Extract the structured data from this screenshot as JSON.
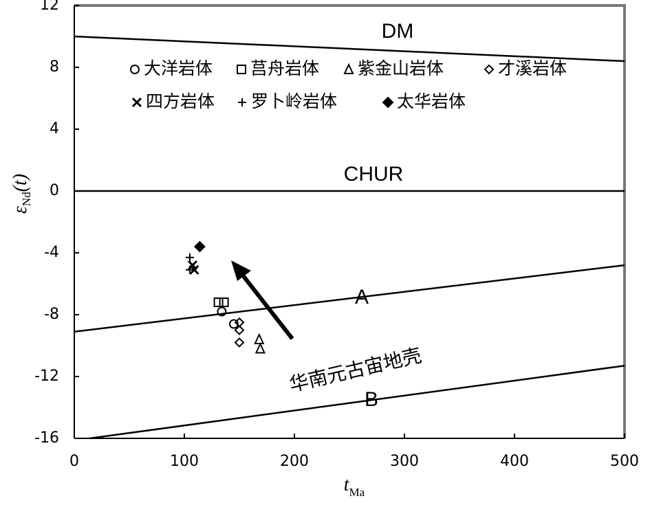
{
  "chart_data": {
    "type": "scatter",
    "xlabel": {
      "symbol": "t",
      "subscript": "Ma"
    },
    "ylabel": {
      "symbol": "ε",
      "subscript": "Nd",
      "suffix": "(t)"
    },
    "xlim": [
      0,
      500
    ],
    "xticks": [
      0,
      100,
      200,
      300,
      400,
      500
    ],
    "ylim": [
      -16,
      12
    ],
    "yticks": [
      -16,
      -12,
      -8,
      -4,
      0,
      4,
      8,
      12
    ],
    "annotation": "华南元古宙地壳",
    "lines": [
      {
        "name": "DM",
        "x": [
          0,
          500
        ],
        "y": [
          10,
          8.4
        ]
      },
      {
        "name": "CHUR",
        "x": [
          0,
          500
        ],
        "y": [
          0,
          0
        ]
      },
      {
        "name": "A",
        "x": [
          0,
          500
        ],
        "y": [
          -9.1,
          -4.8
        ]
      },
      {
        "name": "B",
        "x": [
          14,
          500
        ],
        "y": [
          -16,
          -11.3
        ]
      }
    ],
    "series": [
      {
        "name": "大洋岩体",
        "marker": "circle",
        "color": "#000000",
        "x": [
          134,
          145
        ],
        "y": [
          -7.8,
          -8.6
        ]
      },
      {
        "name": "莒舟岩体",
        "marker": "square",
        "color": "#000000",
        "x": [
          131,
          136
        ],
        "y": [
          -7.2,
          -7.2
        ]
      },
      {
        "name": "紫金山岩体",
        "marker": "triangle",
        "color": "#000000",
        "x": [
          168,
          169
        ],
        "y": [
          -9.6,
          -10.2
        ]
      },
      {
        "name": "才溪岩体",
        "marker": "diamond",
        "color": "#000000",
        "x": [
          150,
          150,
          150
        ],
        "y": [
          -8.5,
          -9.0,
          -9.8
        ]
      },
      {
        "name": "四方岩体",
        "marker": "x",
        "color": "#000000",
        "x": [
          107.5,
          109
        ],
        "y": [
          -4.8,
          -5.1
        ]
      },
      {
        "name": "罗卜岭岩体",
        "marker": "plus",
        "color": "#000000",
        "x": [
          105,
          105
        ],
        "y": [
          -4.3,
          -5.1
        ]
      },
      {
        "name": "太华岩体",
        "marker": "diamond-filled",
        "color": "#000000",
        "x": [
          114
        ],
        "y": [
          -3.6
        ]
      }
    ]
  }
}
